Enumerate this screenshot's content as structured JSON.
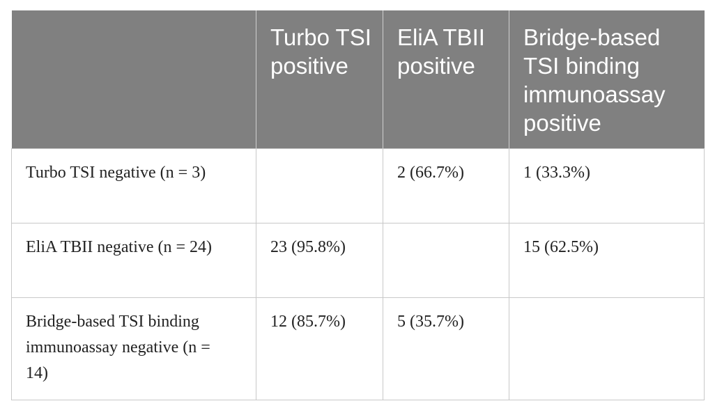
{
  "table": {
    "columns": [
      "Turbo TSI positive",
      "EliA TBII positive",
      "Bridge-based TSI binding immunoassay positive"
    ],
    "rows": [
      {
        "label": "Turbo TSI negative (n = 3)",
        "cells": [
          null,
          "2 (66.7%)",
          "1 (33.3%)"
        ]
      },
      {
        "label": "EliA TBII negative (n = 24)",
        "cells": [
          "23 (95.8%)",
          null,
          "15 (62.5%)"
        ]
      },
      {
        "label": "Bridge-based TSI binding immunoassay negative (n = 14)",
        "cells": [
          "12 (85.7%)",
          "5 (35.7%)",
          null
        ]
      }
    ]
  }
}
